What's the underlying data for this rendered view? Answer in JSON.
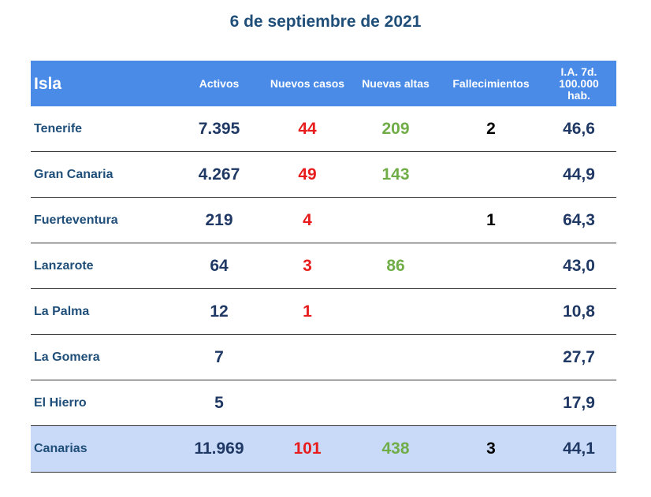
{
  "chart_data": {
    "type": "table",
    "title": "6 de septiembre de 2021",
    "columns": [
      "Isla",
      "Activos",
      "Nuevos casos",
      "Nuevas altas",
      "Fallecimientos",
      "I.A. 7d. 100.000 hab."
    ],
    "header_lines": {
      "ia": [
        "I.A. 7d.",
        "100.000",
        "hab."
      ]
    },
    "rows": [
      {
        "isla": "Tenerife",
        "activos": "7.395",
        "nuevos": "44",
        "altas": "209",
        "fallec": "2",
        "ia": "46,6"
      },
      {
        "isla": "Gran Canaria",
        "activos": "4.267",
        "nuevos": "49",
        "altas": "143",
        "fallec": "",
        "ia": "44,9"
      },
      {
        "isla": "Fuerteventura",
        "activos": "219",
        "nuevos": "4",
        "altas": "",
        "fallec": "1",
        "ia": "64,3"
      },
      {
        "isla": "Lanzarote",
        "activos": "64",
        "nuevos": "3",
        "altas": "86",
        "fallec": "",
        "ia": "43,0"
      },
      {
        "isla": "La Palma",
        "activos": "12",
        "nuevos": "1",
        "altas": "",
        "fallec": "",
        "ia": "10,8"
      },
      {
        "isla": "La Gomera",
        "activos": "7",
        "nuevos": "",
        "altas": "",
        "fallec": "",
        "ia": "27,7"
      },
      {
        "isla": "El Hierro",
        "activos": "5",
        "nuevos": "",
        "altas": "",
        "fallec": "",
        "ia": "17,9"
      }
    ],
    "total": {
      "isla": "Canarias",
      "activos": "11.969",
      "nuevos": "101",
      "altas": "438",
      "fallec": "3",
      "ia": "44,1"
    }
  },
  "colors": {
    "header_bg": "#4a8be8",
    "total_bg": "#c9daf8",
    "nuevos_casos": "#e81c1c",
    "nuevas_altas": "#70ad47",
    "numbers": "#1f3864",
    "title": "#1f4e79"
  }
}
